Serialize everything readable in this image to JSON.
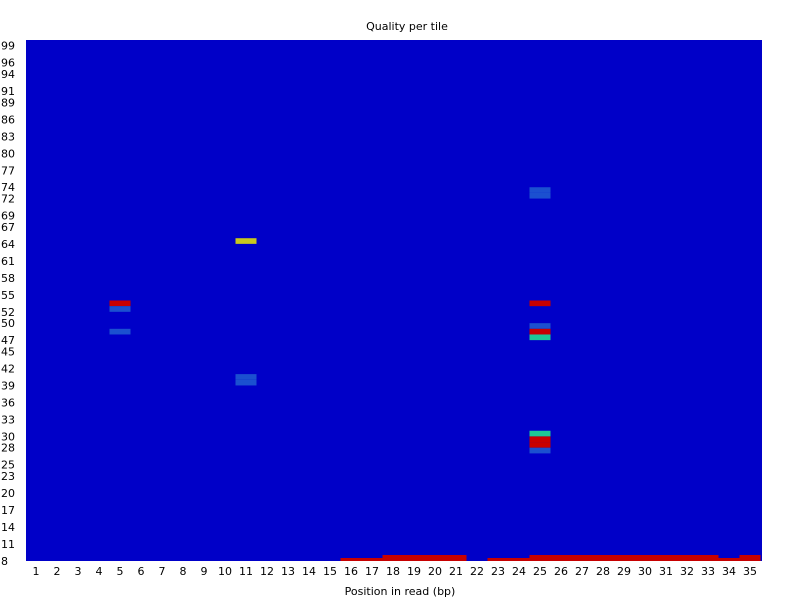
{
  "chart_data": {
    "type": "heatmap",
    "title": "Quality per tile",
    "xlabel": "Position in read (bp)",
    "ylabel": "",
    "x_categories": [
      "1",
      "2",
      "3",
      "4",
      "5",
      "6",
      "7",
      "8",
      "9",
      "10",
      "11",
      "12",
      "13",
      "14",
      "15",
      "16",
      "17",
      "18",
      "19",
      "20",
      "21",
      "22",
      "23",
      "24",
      "25",
      "26",
      "27",
      "28",
      "29",
      "30",
      "31",
      "32",
      "33",
      "34",
      "35"
    ],
    "y_tick_labels": [
      "99",
      "96",
      "94",
      "91",
      "89",
      "86",
      "83",
      "80",
      "77",
      "74",
      "72",
      "69",
      "67",
      "64",
      "61",
      "58",
      "55",
      "52",
      "50",
      "47",
      "45",
      "42",
      "39",
      "36",
      "33",
      "30",
      "28",
      "25",
      "23",
      "20",
      "17",
      "14",
      "11",
      "8"
    ],
    "ylim": [
      8,
      100
    ],
    "background_value": 0,
    "color_scale": {
      "baseline": "#0000C8",
      "light_blue": "#1B50D0",
      "teal": "#1EC896",
      "yellow": "#C8C81E",
      "red": "#C80000"
    },
    "cells": [
      {
        "x": "5",
        "tile": 53,
        "color": "red"
      },
      {
        "x": "5",
        "tile": 52,
        "color": "light_blue"
      },
      {
        "x": "5",
        "tile": 48,
        "color": "light_blue"
      },
      {
        "x": "11",
        "tile": 64,
        "color": "yellow"
      },
      {
        "x": "11",
        "tile": 39,
        "color": "light_blue"
      },
      {
        "x": "11",
        "tile": 40,
        "color": "light_blue"
      },
      {
        "x": "25",
        "tile": 73,
        "color": "light_blue"
      },
      {
        "x": "25",
        "tile": 72,
        "color": "light_blue"
      },
      {
        "x": "25",
        "tile": 53,
        "color": "red"
      },
      {
        "x": "25",
        "tile": 49,
        "color": "light_blue"
      },
      {
        "x": "25",
        "tile": 48,
        "color": "red"
      },
      {
        "x": "25",
        "tile": 47,
        "color": "teal"
      },
      {
        "x": "25",
        "tile": 30,
        "color": "teal"
      },
      {
        "x": "25",
        "tile": 29,
        "color": "red"
      },
      {
        "x": "25",
        "tile": 28,
        "color": "red"
      },
      {
        "x": "25",
        "tile": 27,
        "color": "light_blue"
      }
    ],
    "bottom_band": [
      {
        "x": "16",
        "tiles": 1
      },
      {
        "x": "17",
        "tiles": 1
      },
      {
        "x": "18",
        "tiles": 2
      },
      {
        "x": "19",
        "tiles": 2
      },
      {
        "x": "20",
        "tiles": 2
      },
      {
        "x": "21",
        "tiles": 2
      },
      {
        "x": "22",
        "tiles": 0
      },
      {
        "x": "23",
        "tiles": 1
      },
      {
        "x": "24",
        "tiles": 1
      },
      {
        "x": "25",
        "tiles": 2
      },
      {
        "x": "26",
        "tiles": 2
      },
      {
        "x": "27",
        "tiles": 2
      },
      {
        "x": "28",
        "tiles": 2
      },
      {
        "x": "29",
        "tiles": 2
      },
      {
        "x": "30",
        "tiles": 2
      },
      {
        "x": "31",
        "tiles": 2
      },
      {
        "x": "32",
        "tiles": 2
      },
      {
        "x": "33",
        "tiles": 2
      },
      {
        "x": "34",
        "tiles": 1
      },
      {
        "x": "35",
        "tiles": 2
      }
    ],
    "bottom_band_color": "red"
  }
}
